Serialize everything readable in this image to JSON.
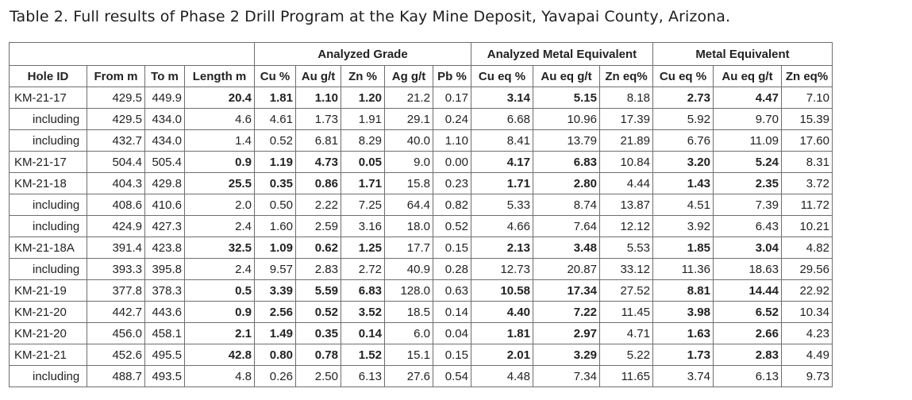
{
  "caption": "Table 2. Full results of Phase 2 Drill Program at the Kay Mine Deposit, Yavapai County, Arizona.",
  "group_headers": {
    "blank": "",
    "analyzed_grade": "Analyzed Grade",
    "analyzed_metal_equivalent": "Analyzed Metal Equivalent",
    "metal_equivalent": "Metal Equivalent"
  },
  "columns": [
    "Hole ID",
    "From m",
    "To m",
    "Length m",
    "Cu %",
    "Au g/t",
    "Zn %",
    "Ag g/t",
    "Pb %",
    "Cu eq %",
    "Au eq g/t",
    "Zn eq%",
    "Cu eq %",
    "Au eq g/t",
    "Zn eq%"
  ],
  "rows": [
    {
      "hole": "KM-21-17",
      "from": "429.5",
      "to": "449.9",
      "length": "20.4",
      "cu": "1.81",
      "au": "1.10",
      "zn": "1.20",
      "ag": "21.2",
      "pb": "0.17",
      "cu_eq_a": "3.14",
      "au_eq_a": "5.15",
      "zn_eq_a": "8.18",
      "cu_eq": "2.73",
      "au_eq": "4.47",
      "zn_eq": "7.10"
    },
    {
      "hole": "including",
      "from": "429.5",
      "to": "434.0",
      "length": "4.6",
      "cu": "4.61",
      "au": "1.73",
      "zn": "1.91",
      "ag": "29.1",
      "pb": "0.24",
      "cu_eq_a": "6.68",
      "au_eq_a": "10.96",
      "zn_eq_a": "17.39",
      "cu_eq": "5.92",
      "au_eq": "9.70",
      "zn_eq": "15.39"
    },
    {
      "hole": "including",
      "from": "432.7",
      "to": "434.0",
      "length": "1.4",
      "cu": "0.52",
      "au": "6.81",
      "zn": "8.29",
      "ag": "40.0",
      "pb": "1.10",
      "cu_eq_a": "8.41",
      "au_eq_a": "13.79",
      "zn_eq_a": "21.89",
      "cu_eq": "6.76",
      "au_eq": "11.09",
      "zn_eq": "17.60"
    },
    {
      "hole": "KM-21-17",
      "from": "504.4",
      "to": "505.4",
      "length": "0.9",
      "cu": "1.19",
      "au": "4.73",
      "zn": "0.05",
      "ag": "9.0",
      "pb": "0.00",
      "cu_eq_a": "4.17",
      "au_eq_a": "6.83",
      "zn_eq_a": "10.84",
      "cu_eq": "3.20",
      "au_eq": "5.24",
      "zn_eq": "8.31"
    },
    {
      "hole": "KM-21-18",
      "from": "404.3",
      "to": "429.8",
      "length": "25.5",
      "cu": "0.35",
      "au": "0.86",
      "zn": "1.71",
      "ag": "15.8",
      "pb": "0.23",
      "cu_eq_a": "1.71",
      "au_eq_a": "2.80",
      "zn_eq_a": "4.44",
      "cu_eq": "1.43",
      "au_eq": "2.35",
      "zn_eq": "3.72"
    },
    {
      "hole": "including",
      "from": "408.6",
      "to": "410.6",
      "length": "2.0",
      "cu": "0.50",
      "au": "2.22",
      "zn": "7.25",
      "ag": "64.4",
      "pb": "0.82",
      "cu_eq_a": "5.33",
      "au_eq_a": "8.74",
      "zn_eq_a": "13.87",
      "cu_eq": "4.51",
      "au_eq": "7.39",
      "zn_eq": "11.72"
    },
    {
      "hole": "including",
      "from": "424.9",
      "to": "427.3",
      "length": "2.4",
      "cu": "1.60",
      "au": "2.59",
      "zn": "3.16",
      "ag": "18.0",
      "pb": "0.52",
      "cu_eq_a": "4.66",
      "au_eq_a": "7.64",
      "zn_eq_a": "12.12",
      "cu_eq": "3.92",
      "au_eq": "6.43",
      "zn_eq": "10.21"
    },
    {
      "hole": "KM-21-18A",
      "from": "391.4",
      "to": "423.8",
      "length": "32.5",
      "cu": "1.09",
      "au": "0.62",
      "zn": "1.25",
      "ag": "17.7",
      "pb": "0.15",
      "cu_eq_a": "2.13",
      "au_eq_a": "3.48",
      "zn_eq_a": "5.53",
      "cu_eq": "1.85",
      "au_eq": "3.04",
      "zn_eq": "4.82"
    },
    {
      "hole": "including",
      "from": "393.3",
      "to": "395.8",
      "length": "2.4",
      "cu": "9.57",
      "au": "2.83",
      "zn": "2.72",
      "ag": "40.9",
      "pb": "0.28",
      "cu_eq_a": "12.73",
      "au_eq_a": "20.87",
      "zn_eq_a": "33.12",
      "cu_eq": "11.36",
      "au_eq": "18.63",
      "zn_eq": "29.56"
    },
    {
      "hole": "KM-21-19",
      "from": "377.8",
      "to": "378.3",
      "length": "0.5",
      "cu": "3.39",
      "au": "5.59",
      "zn": "6.83",
      "ag": "128.0",
      "pb": "0.63",
      "cu_eq_a": "10.58",
      "au_eq_a": "17.34",
      "zn_eq_a": "27.52",
      "cu_eq": "8.81",
      "au_eq": "14.44",
      "zn_eq": "22.92"
    },
    {
      "hole": "KM-21-20",
      "from": "442.7",
      "to": "443.6",
      "length": "0.9",
      "cu": "2.56",
      "au": "0.52",
      "zn": "3.52",
      "ag": "18.5",
      "pb": "0.14",
      "cu_eq_a": "4.40",
      "au_eq_a": "7.22",
      "zn_eq_a": "11.45",
      "cu_eq": "3.98",
      "au_eq": "6.52",
      "zn_eq": "10.34"
    },
    {
      "hole": "KM-21-20",
      "from": "456.0",
      "to": "458.1",
      "length": "2.1",
      "cu": "1.49",
      "au": "0.35",
      "zn": "0.14",
      "ag": "6.0",
      "pb": "0.04",
      "cu_eq_a": "1.81",
      "au_eq_a": "2.97",
      "zn_eq_a": "4.71",
      "cu_eq": "1.63",
      "au_eq": "2.66",
      "zn_eq": "4.23"
    },
    {
      "hole": "KM-21-21",
      "from": "452.6",
      "to": "495.5",
      "length": "42.8",
      "cu": "0.80",
      "au": "0.78",
      "zn": "1.52",
      "ag": "15.1",
      "pb": "0.15",
      "cu_eq_a": "2.01",
      "au_eq_a": "3.29",
      "zn_eq_a": "5.22",
      "cu_eq": "1.73",
      "au_eq": "2.83",
      "zn_eq": "4.49"
    },
    {
      "hole": "including",
      "from": "488.7",
      "to": "493.5",
      "length": "4.8",
      "cu": "0.26",
      "au": "2.50",
      "zn": "6.13",
      "ag": "27.6",
      "pb": "0.54",
      "cu_eq_a": "4.48",
      "au_eq_a": "7.34",
      "zn_eq_a": "11.65",
      "cu_eq": "3.74",
      "au_eq": "6.13",
      "zn_eq": "9.73"
    }
  ]
}
